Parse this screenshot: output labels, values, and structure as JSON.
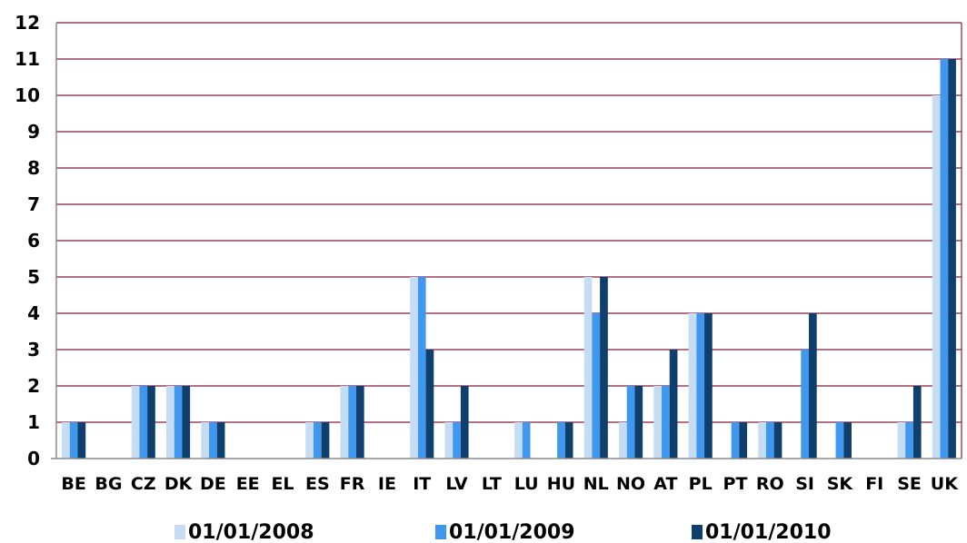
{
  "chart_data": {
    "type": "bar",
    "categories": [
      "BE",
      "BG",
      "CZ",
      "DK",
      "DE",
      "EE",
      "EL",
      "ES",
      "FR",
      "IE",
      "IT",
      "LV",
      "LT",
      "LU",
      "HU",
      "NL",
      "NO",
      "AT",
      "PL",
      "PT",
      "RO",
      "SI",
      "SK",
      "FI",
      "SE",
      "UK"
    ],
    "series": [
      {
        "name": "01/01/2008",
        "color": "#c5dcf3",
        "values": [
          1,
          0,
          2,
          2,
          1,
          0,
          0,
          1,
          2,
          0,
          5,
          1,
          0,
          1,
          0,
          5,
          1,
          2,
          4,
          0,
          1,
          0,
          0,
          0,
          1,
          10
        ]
      },
      {
        "name": "01/01/2009",
        "color": "#3f97ee",
        "values": [
          1,
          0,
          2,
          2,
          1,
          0,
          0,
          1,
          2,
          0,
          5,
          1,
          0,
          1,
          1,
          4,
          2,
          2,
          4,
          1,
          1,
          3,
          1,
          0,
          1,
          11
        ]
      },
      {
        "name": "01/01/2010",
        "color": "#0e3f6d",
        "values": [
          1,
          0,
          2,
          2,
          1,
          0,
          0,
          1,
          2,
          0,
          3,
          2,
          0,
          0,
          1,
          5,
          2,
          3,
          4,
          1,
          1,
          4,
          1,
          0,
          2,
          11
        ]
      }
    ],
    "title": "",
    "xlabel": "",
    "ylabel": "",
    "ylim": [
      0,
      12
    ],
    "yticks": [
      0,
      1,
      2,
      3,
      4,
      5,
      6,
      7,
      8,
      9,
      10,
      11,
      12
    ],
    "grid": true,
    "legend_position": "bottom"
  }
}
